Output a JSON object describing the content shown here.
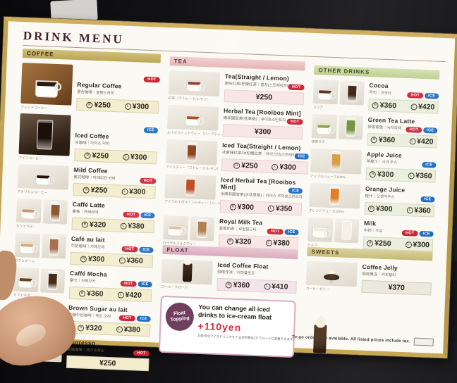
{
  "page": {
    "title": "DRINK MENU"
  },
  "footer": {
    "note": "To-go orders are available.  All listed prices include tax."
  },
  "promo": {
    "badge_line1": "Float",
    "badge_line2": "Topping",
    "text_line1": "You can change all iced",
    "text_line2": "drinks to ice-cream float",
    "price": "+110yen",
    "note_jp": "お好きなアイスドリンクを＋110円(税込)でフロートに変更できます。"
  },
  "size_labels": {
    "regular": "R",
    "large": "L"
  },
  "badge_labels": {
    "hot": "HOT",
    "ice": "ICE"
  },
  "colors": {
    "hot_badge": "#cf2335",
    "ice_badge": "#1f6fc4",
    "title": "#40222e",
    "promo_price": "#d8232f",
    "promo_badge_bg": "#6e3c5c"
  },
  "columns": [
    {
      "sections": [
        {
          "id": "coffee",
          "label": "COFFEE",
          "theme": "coffee",
          "items": [
            {
              "name": "Regular Coffee",
              "sub": "混合咖啡｜블렌드커피",
              "caption": "ブレンドコーヒー",
              "badges": [
                "HOT"
              ],
              "price_r": "¥250",
              "price_l": "¥300",
              "size": "large",
              "photos": [
                {
                  "kind": "mug",
                  "liquid": "#2b1a10",
                  "bg": "bg-wood"
                }
              ]
            },
            {
              "name": "Iced Coffee",
              "sub": "冰咖啡｜아이스 커피",
              "caption": "アイスコーヒー",
              "badges": [
                "ICE"
              ],
              "price_r": "¥250",
              "price_l": "¥300",
              "size": "large",
              "photos": [
                {
                  "kind": "glass",
                  "liquid": "#1d0f08",
                  "bg": "bg-dark"
                }
              ]
            },
            {
              "name": "Mild Coffee",
              "sub": "美式咖啡｜아메리칸 커피",
              "caption": "アメリカンコーヒー",
              "badges": [
                "HOT"
              ],
              "price_r": "¥250",
              "price_l": "¥300",
              "photos": [
                {
                  "kind": "mug",
                  "liquid": "#23130a"
                }
              ]
            },
            {
              "name": "Caffé Latte",
              "sub": "拿铁｜카페라떼",
              "caption": "カフェラテ",
              "badges": [
                "HOT",
                "ICE"
              ],
              "price_r": "¥320",
              "price_l": "¥380",
              "photos": [
                {
                  "kind": "mug",
                  "liquid": "#c89a6a"
                },
                {
                  "kind": "glass",
                  "liquid": "#8a5a33"
                }
              ]
            },
            {
              "name": "Café au lait",
              "sub": "牛奶咖啡｜카페오레",
              "caption": "カフェオーレ",
              "badges": [
                "HOT",
                "ICE"
              ],
              "price_r": "¥300",
              "price_l": "¥360",
              "photos": [
                {
                  "kind": "mug",
                  "liquid": "#d8a875"
                },
                {
                  "kind": "glass",
                  "liquid": "#a5714a"
                }
              ]
            },
            {
              "name": "Caffé Mocha",
              "sub": "摩卡｜카페모카",
              "caption": "カフェモカ",
              "badges": [
                "HOT",
                "ICE"
              ],
              "price_r": "¥360",
              "price_l": "¥420",
              "photos": [
                {
                  "kind": "mug",
                  "liquid": "#6a4024"
                },
                {
                  "kind": "glass",
                  "liquid": "#4a2c16"
                }
              ]
            },
            {
              "name": "Brown Sugar au lait",
              "sub": "红糖牛奶咖啡｜흑당 오레",
              "caption": "黒糖オーレ",
              "badges": [
                "HOT",
                "ICE"
              ],
              "price_r": "¥320",
              "price_l": "¥380",
              "photos": [
                {
                  "kind": "mug",
                  "liquid": "#d09a62"
                },
                {
                  "kind": "glass",
                  "liquid": "#b57a3e"
                }
              ]
            },
            {
              "name": "Espresso",
              "sub": "浓缩咖啡｜에스프레소",
              "caption": "エスプレッソ",
              "badges": [
                "HOT"
              ],
              "price_single": "¥250",
              "photos": [
                {
                  "kind": "espresso"
                }
              ]
            }
          ]
        }
      ]
    },
    {
      "sections": [
        {
          "id": "tea",
          "label": "TEA",
          "theme": "tea",
          "items": [
            {
              "name": "Tea(Straight / Lemon)",
              "sub": "原味红茶/柠檬红茶｜홍차(스트레이트/레몬)",
              "caption": "紅茶（ストレート/レモン）",
              "badges": [
                "HOT"
              ],
              "price_single": "¥250",
              "photos": [
                {
                  "kind": "mug",
                  "liquid": "#8a3418"
                }
              ]
            },
            {
              "name": "Herbal Tea [Rooibos Mint]",
              "sub": "南非国宝茶(花草茶)｜루이보스민트차",
              "caption": "ルイボスミントティー（ハーブティー）",
              "badges": [
                "HOT"
              ],
              "price_single": "¥300",
              "photos": [
                {
                  "kind": "mug",
                  "liquid": "#a03a1c"
                }
              ]
            },
            {
              "name": "Iced Tea(Straight / Lemon)",
              "sub": "冰原味红茶/冰柠檬红茶｜아이스티(스트레이트/레몬)",
              "caption": "アイスティー（ストレート/レモン）",
              "badges": [
                "ICE"
              ],
              "price_r": "¥250",
              "price_l": "¥300",
              "photos": [
                {
                  "kind": "glass",
                  "liquid": "#8a3a14"
                }
              ]
            },
            {
              "name": "Iced Herbal Tea [Rooibos Mint]",
              "sub": "冰南非国宝茶(冰花草茶)｜아이스 루이보스민트차",
              "caption": "アイスルイボスミントティー（ハーブティー）",
              "badges": [
                "ICE"
              ],
              "price_r": "¥300",
              "price_l": "¥350",
              "photos": [
                {
                  "kind": "glass",
                  "liquid": "#c04a1e"
                }
              ]
            },
            {
              "name": "Royal Milk Tea",
              "sub": "皇家奶茶｜로얄밀크티",
              "caption": "ロイヤルミルクティー",
              "badges": [
                "HOT",
                "ICE"
              ],
              "price_r": "¥320",
              "price_l": "¥380",
              "photos": [
                {
                  "kind": "mug",
                  "liquid": "#e0c09a"
                },
                {
                  "kind": "glass",
                  "liquid": "#b08050"
                }
              ]
            }
          ]
        },
        {
          "id": "float",
          "label": "FLOAT",
          "theme": "float",
          "items": [
            {
              "name": "Iced Coffee Float",
              "sub": "咖啡浮冰｜커피플로트",
              "caption": "コーヒーフロート",
              "badges": [],
              "price_r": "¥360",
              "price_l": "¥410",
              "photos": [
                {
                  "kind": "float"
                }
              ]
            }
          ]
        }
      ]
    },
    {
      "sections": [
        {
          "id": "other",
          "label": "OTHER DRINKS",
          "theme": "other",
          "items": [
            {
              "name": "Cocoa",
              "sub": "可可｜코코아",
              "caption": "ココア",
              "badges": [
                "HOT",
                "ICE"
              ],
              "price_r": "¥360",
              "price_l": "¥420",
              "photos": [
                {
                  "kind": "mug",
                  "liquid": "#5a3018"
                },
                {
                  "kind": "glass",
                  "liquid": "#3e2210"
                }
              ]
            },
            {
              "name": "Green Tea Latte",
              "sub": "抹茶拿铁｜녹차라떼",
              "caption": "抹茶ラテ",
              "badges": [
                "HOT",
                "ICE"
              ],
              "price_r": "¥360",
              "price_l": "¥420",
              "photos": [
                {
                  "kind": "mug",
                  "liquid": "#8aa04a"
                },
                {
                  "kind": "glass",
                  "liquid": "#6e8f35"
                }
              ]
            },
            {
              "name": "Apple Juice",
              "sub": "苹果汁｜사과 주스",
              "caption": "アップルジュース100%",
              "badges": [
                "ICE"
              ],
              "price_r": "¥300",
              "price_l": "¥360",
              "photos": [
                {
                  "kind": "glass",
                  "liquid": "#d89a3e"
                }
              ]
            },
            {
              "name": "Orange Juice",
              "sub": "橙汁｜오렌지주스",
              "caption": "オレンジジュース100%",
              "badges": [
                "ICE"
              ],
              "price_r": "¥300",
              "price_l": "¥360",
              "photos": [
                {
                  "kind": "glass",
                  "liquid": "#e07818"
                }
              ]
            },
            {
              "name": "Milk",
              "sub": "牛奶｜우유",
              "caption": "ミルク",
              "badges": [
                "HOT",
                "ICE"
              ],
              "price_r": "¥250",
              "price_l": "¥300",
              "photos": [
                {
                  "kind": "mug",
                  "liquid": "#f2ead8"
                },
                {
                  "kind": "glass",
                  "liquid": "#f4efe2"
                }
              ]
            }
          ]
        },
        {
          "id": "sweets",
          "label": "SWEETS",
          "theme": "sweets",
          "items": [
            {
              "name": "Coffee Jelly",
              "sub": "咖啡果冻｜커피젤리",
              "caption": "コーヒーゼリー",
              "badges": [],
              "price_single": "¥370",
              "photos": [
                {
                  "kind": "jelly"
                }
              ]
            }
          ]
        }
      ]
    }
  ]
}
